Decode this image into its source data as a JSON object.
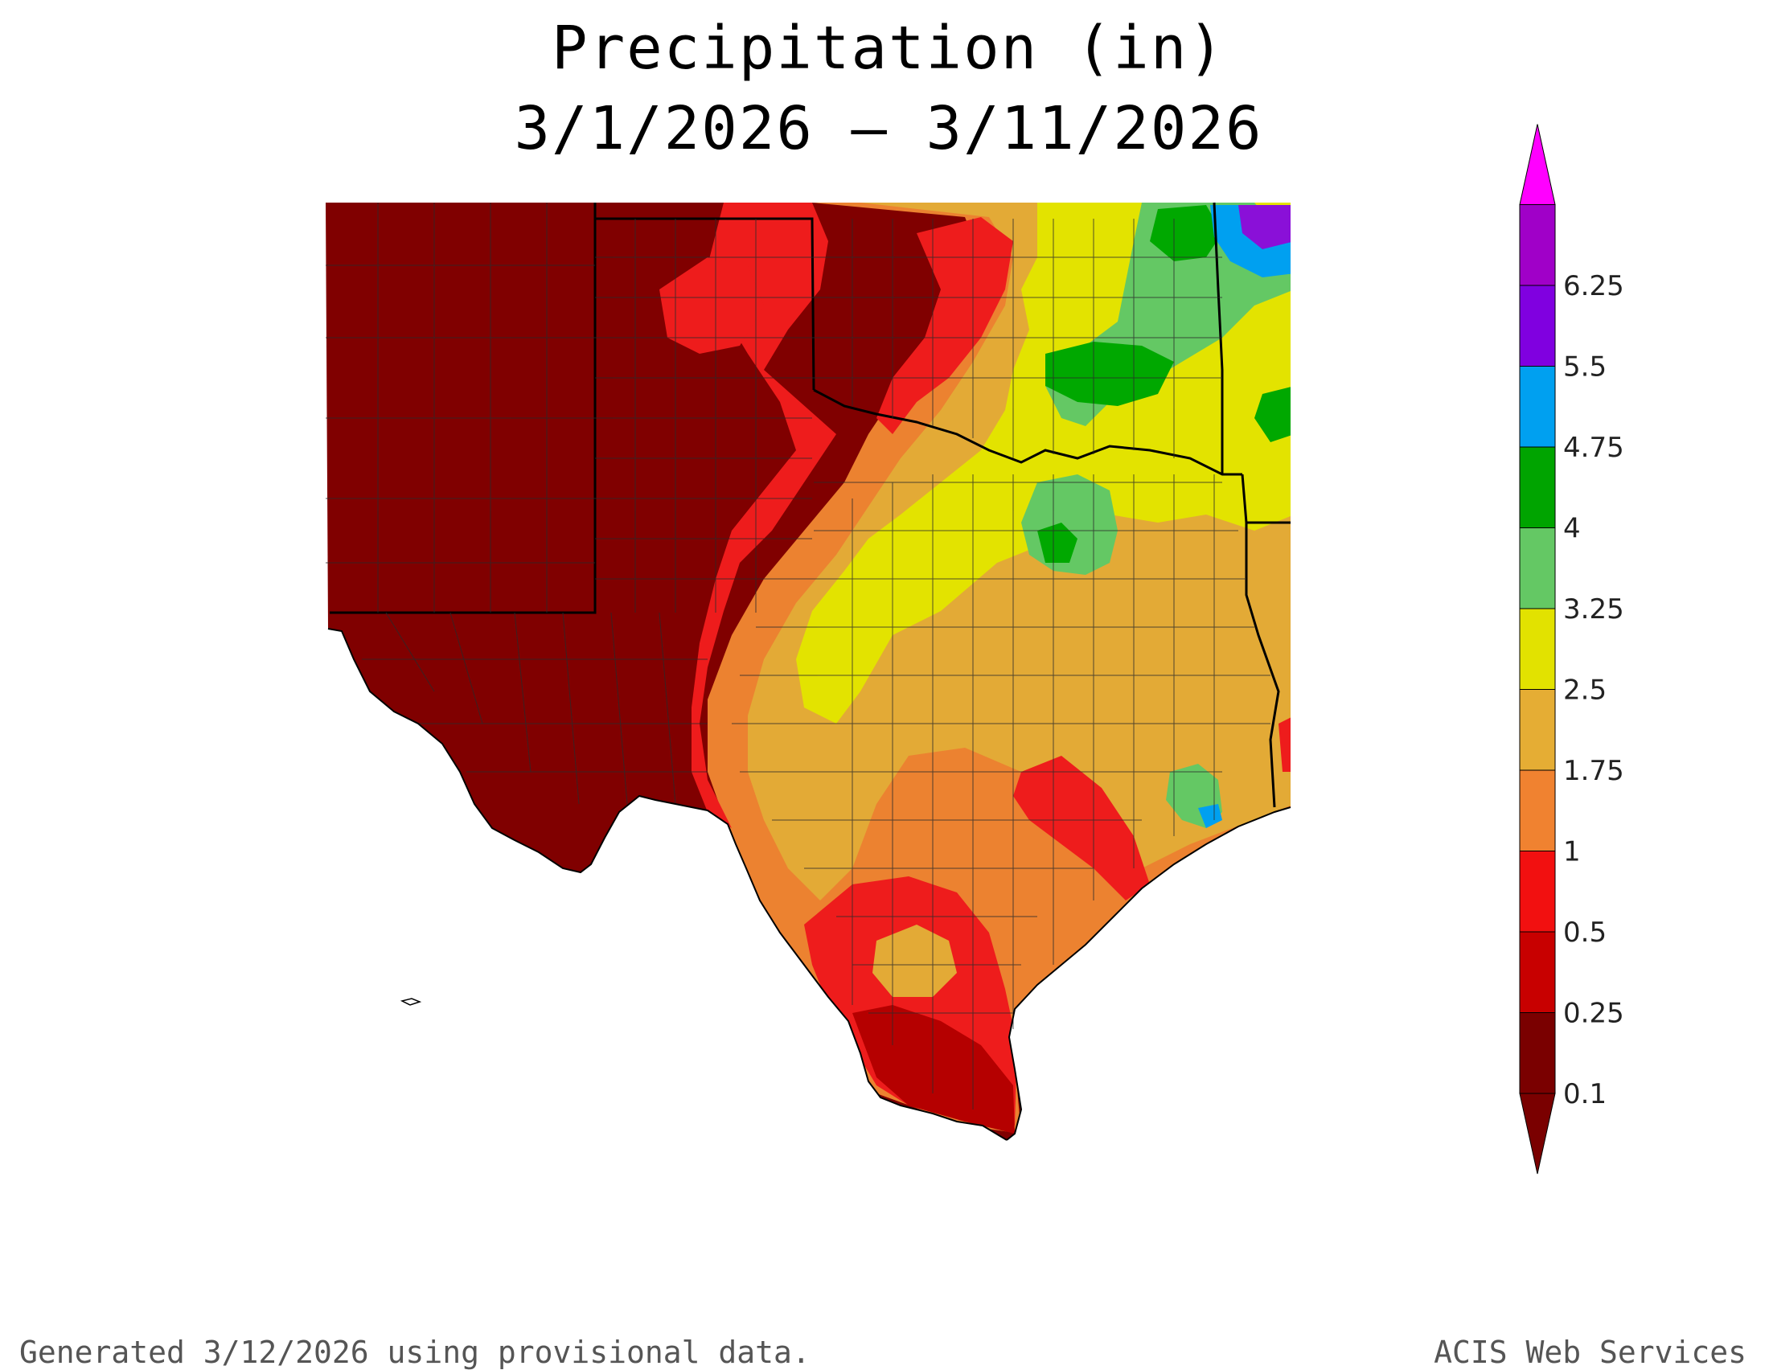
{
  "title": {
    "line1": "Precipitation (in)",
    "line2": "3/1/2026 – 3/11/2026"
  },
  "footer": {
    "left": "Generated 3/12/2026  using provisional data.",
    "right": "ACIS Web Services"
  },
  "legend": {
    "items": [
      {
        "label": "0.1",
        "color": "#7a0000"
      },
      {
        "label": "0.25",
        "color": "#c80000"
      },
      {
        "label": "0.5",
        "color": "#f21010"
      },
      {
        "label": "1",
        "color": "#f08230"
      },
      {
        "label": "1.75",
        "color": "#e5ad34"
      },
      {
        "label": "2.5",
        "color": "#e2e200"
      },
      {
        "label": "3.25",
        "color": "#64c864"
      },
      {
        "label": "4",
        "color": "#00a400"
      },
      {
        "label": "4.75",
        "color": "#00a0f0"
      },
      {
        "label": "5.5",
        "color": "#8000e0"
      },
      {
        "label": "6.25",
        "color": "#a000c8"
      }
    ],
    "under_color": "#7a0000",
    "over_color": "#ff00ff"
  },
  "colors": {
    "dry": "#800000",
    "very_low": "#b50000",
    "low": "#ee1c1c",
    "mid_low": "#ec8230",
    "mid": "#e3aa36",
    "mid_high": "#e3e300",
    "high": "#64c864",
    "higher": "#00a800",
    "very_high": "#00a0f0",
    "extreme": "#8a10d8"
  }
}
